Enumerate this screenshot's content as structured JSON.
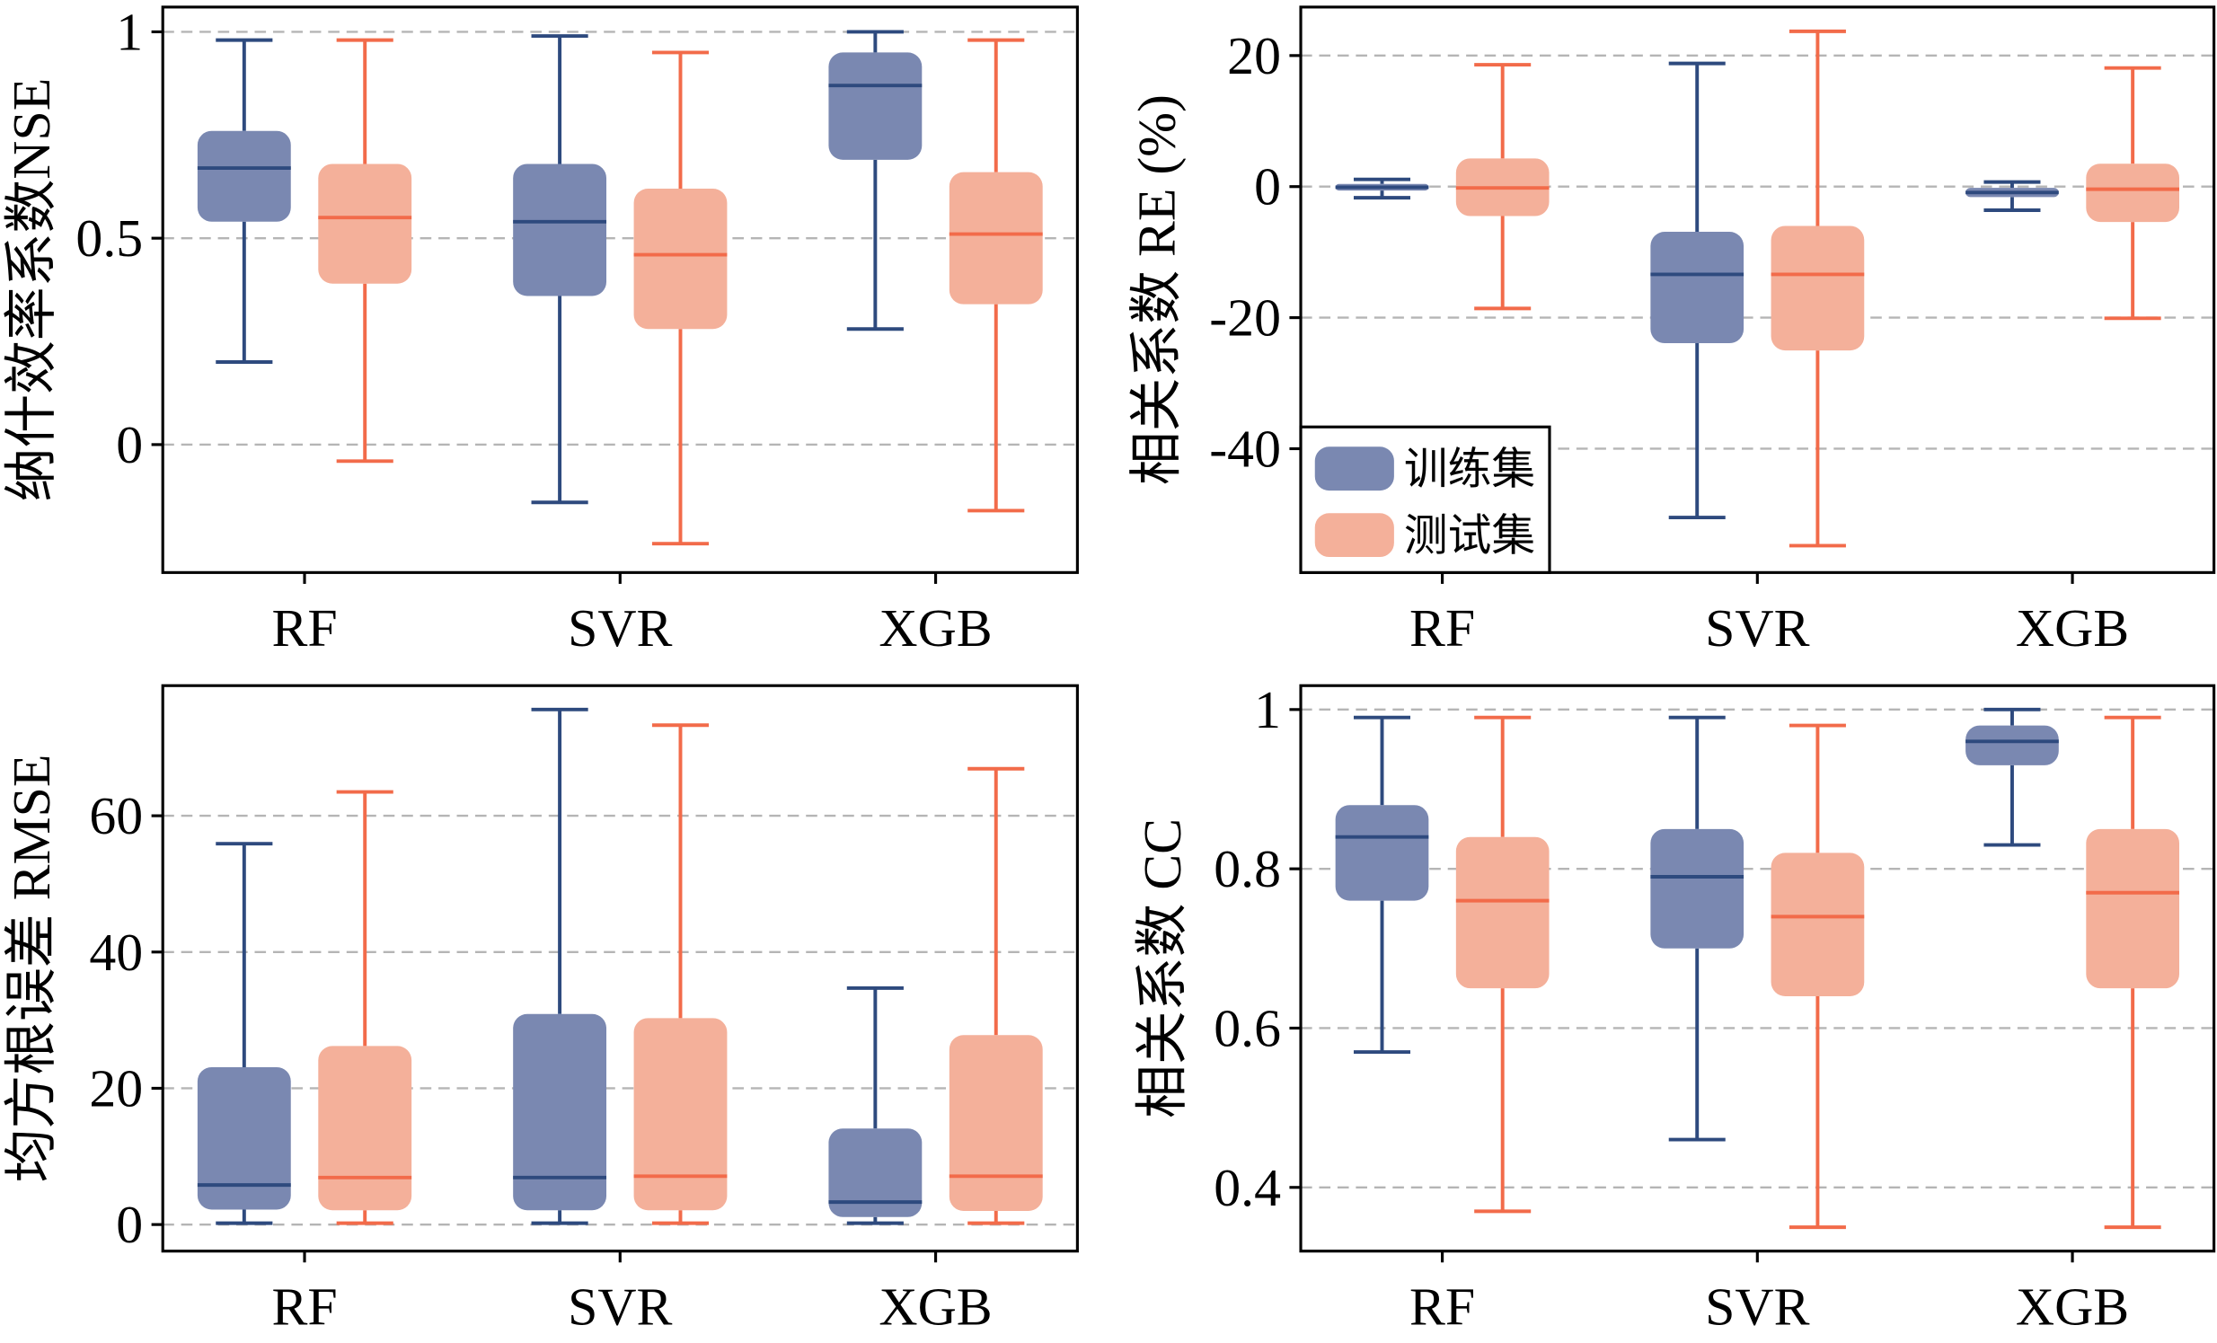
{
  "colors": {
    "series": [
      {
        "fill": "#7a88b1",
        "line": "#2e4a7e"
      },
      {
        "fill": "#f4b09a",
        "line": "#f26b4a"
      }
    ],
    "grid": "#b5b5b5"
  },
  "chart_data": [
    {
      "type": "box",
      "categories": [
        "RF",
        "SVR",
        "XGB"
      ],
      "ylabel": "纳什效率系数NSE",
      "ylim": [
        -0.31,
        1.06
      ],
      "yticks": [
        0,
        0.5,
        1
      ],
      "ytick_labels": [
        "0",
        "0.5",
        "1"
      ],
      "grid": true,
      "series": [
        {
          "boxes": [
            {
              "whislo": 0.2,
              "q1": 0.54,
              "med": 0.67,
              "q3": 0.76,
              "whishi": 0.98
            },
            {
              "whislo": -0.14,
              "q1": 0.36,
              "med": 0.54,
              "q3": 0.68,
              "whishi": 0.99
            },
            {
              "whislo": 0.28,
              "q1": 0.69,
              "med": 0.87,
              "q3": 0.95,
              "whishi": 1.0
            }
          ]
        },
        {
          "boxes": [
            {
              "whislo": -0.04,
              "q1": 0.39,
              "med": 0.55,
              "q3": 0.68,
              "whishi": 0.98
            },
            {
              "whislo": -0.24,
              "q1": 0.28,
              "med": 0.46,
              "q3": 0.62,
              "whishi": 0.95
            },
            {
              "whislo": -0.16,
              "q1": 0.34,
              "med": 0.51,
              "q3": 0.66,
              "whishi": 0.98
            }
          ]
        }
      ]
    },
    {
      "type": "box",
      "categories": [
        "RF",
        "SVR",
        "XGB"
      ],
      "ylabel": "相关系数 RE (%)",
      "ylim": [
        -58.9,
        27.4
      ],
      "yticks": [
        20,
        0,
        -20,
        -40
      ],
      "ytick_labels": [
        "20",
        "0",
        "-20",
        "-40"
      ],
      "grid": true,
      "legend": {
        "placement": "lower-left",
        "entries": [
          "训练集",
          "测试集"
        ]
      },
      "series": [
        {
          "boxes": [
            {
              "whislo": -1.7,
              "q1": -0.6,
              "med": -0.1,
              "q3": 0.4,
              "whishi": 1.1
            },
            {
              "whislo": -50.5,
              "q1": -23.9,
              "med": -13.4,
              "q3": -6.9,
              "whishi": 18.8
            },
            {
              "whislo": -3.6,
              "q1": -1.6,
              "med": -0.9,
              "q3": -0.2,
              "whishi": 0.7
            }
          ]
        },
        {
          "boxes": [
            {
              "whislo": -18.6,
              "q1": -4.5,
              "med": -0.2,
              "q3": 4.3,
              "whishi": 18.6
            },
            {
              "whislo": -54.8,
              "q1": -25.0,
              "med": -13.4,
              "q3": -6.0,
              "whishi": 23.7
            },
            {
              "whislo": -20.1,
              "q1": -5.4,
              "med": -0.4,
              "q3": 3.5,
              "whishi": 18.1
            }
          ]
        }
      ]
    },
    {
      "type": "box",
      "categories": [
        "RF",
        "SVR",
        "XGB"
      ],
      "ylabel": "均方根误差 RMSE",
      "ylim": [
        -3.9,
        79.1
      ],
      "yticks": [
        0,
        20,
        40,
        60
      ],
      "ytick_labels": [
        "0",
        "20",
        "40",
        "60"
      ],
      "grid": true,
      "series": [
        {
          "boxes": [
            {
              "whislo": 0.2,
              "q1": 2.2,
              "med": 5.8,
              "q3": 23.1,
              "whishi": 55.9
            },
            {
              "whislo": 0.2,
              "q1": 2.1,
              "med": 6.9,
              "q3": 30.9,
              "whishi": 75.6
            },
            {
              "whislo": 0.2,
              "q1": 1.1,
              "med": 3.3,
              "q3": 14.1,
              "whishi": 34.7
            }
          ]
        },
        {
          "boxes": [
            {
              "whislo": 0.2,
              "q1": 2.1,
              "med": 6.9,
              "q3": 26.2,
              "whishi": 63.5
            },
            {
              "whislo": 0.2,
              "q1": 2.1,
              "med": 7.1,
              "q3": 30.3,
              "whishi": 73.3
            },
            {
              "whislo": 0.2,
              "q1": 2.0,
              "med": 7.1,
              "q3": 27.8,
              "whishi": 66.9
            }
          ]
        }
      ]
    },
    {
      "type": "box",
      "categories": [
        "RF",
        "SVR",
        "XGB"
      ],
      "ylabel": "相关系数 CC",
      "ylim": [
        0.32,
        1.03
      ],
      "yticks": [
        1,
        0.8,
        0.6,
        0.4
      ],
      "ytick_labels": [
        "1",
        "0.8",
        "0.6",
        "0.4"
      ],
      "grid": true,
      "series": [
        {
          "boxes": [
            {
              "whislo": 0.57,
              "q1": 0.76,
              "med": 0.84,
              "q3": 0.88,
              "whishi": 0.99
            },
            {
              "whislo": 0.46,
              "q1": 0.7,
              "med": 0.79,
              "q3": 0.85,
              "whishi": 0.99
            },
            {
              "whislo": 0.83,
              "q1": 0.93,
              "med": 0.96,
              "q3": 0.98,
              "whishi": 1.0
            }
          ]
        },
        {
          "boxes": [
            {
              "whislo": 0.37,
              "q1": 0.65,
              "med": 0.76,
              "q3": 0.84,
              "whishi": 0.99
            },
            {
              "whislo": 0.35,
              "q1": 0.64,
              "med": 0.74,
              "q3": 0.82,
              "whishi": 0.98
            },
            {
              "whislo": 0.35,
              "q1": 0.65,
              "med": 0.77,
              "q3": 0.85,
              "whishi": 0.99
            }
          ]
        }
      ]
    }
  ]
}
